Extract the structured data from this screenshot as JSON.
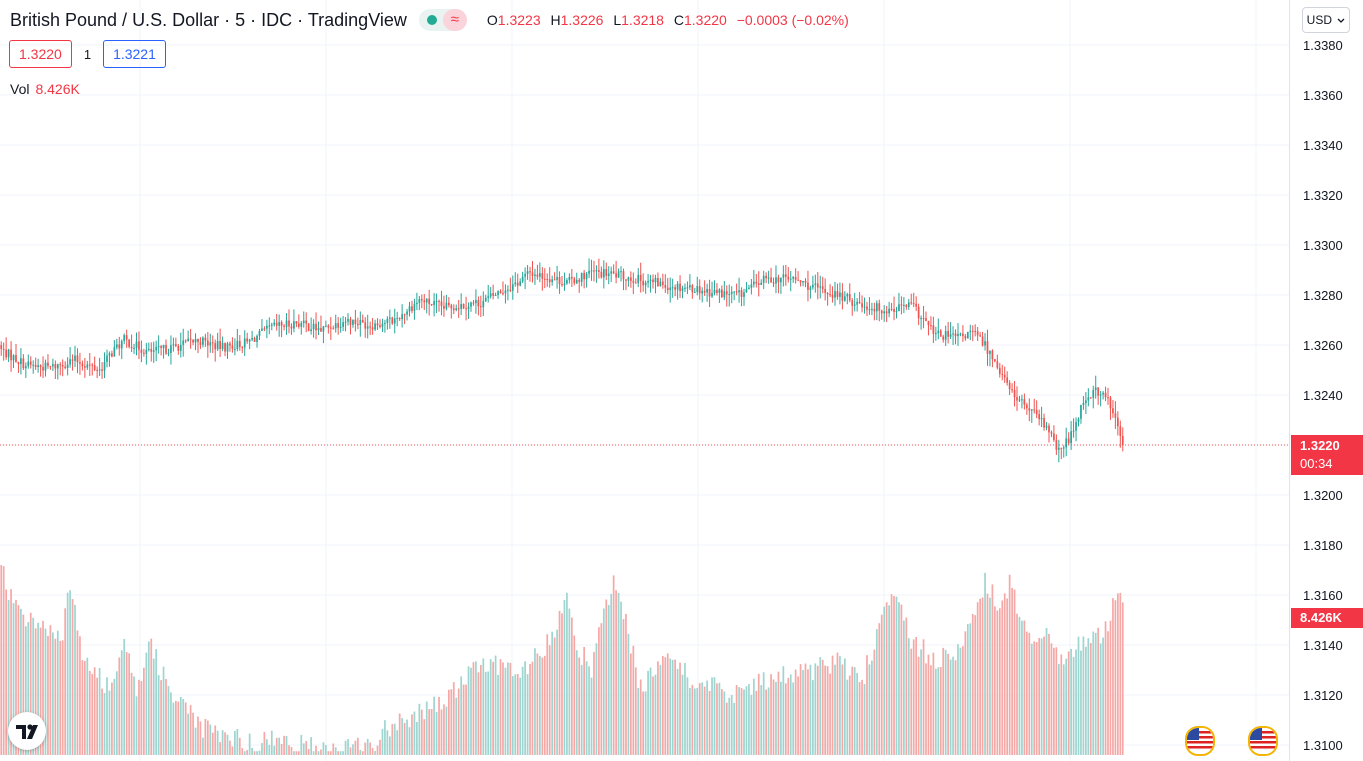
{
  "header": {
    "symbol": "British Pound / U.S. Dollar",
    "interval": "5",
    "exchange": "IDC",
    "source": "TradingView",
    "status_wave_icon": "≈",
    "ohlc": {
      "o_label": "O",
      "o": "1.3223",
      "h_label": "H",
      "h": "1.3226",
      "l_label": "L",
      "l": "1.3218",
      "c_label": "C",
      "c": "1.3220",
      "change": "−0.0003 (−0.02%)"
    }
  },
  "trade": {
    "bid": "1.3220",
    "spread": "1",
    "ask": "1.3221"
  },
  "volume": {
    "label": "Vol",
    "value": "8.426K"
  },
  "currency_selector": "USD",
  "price_tag": {
    "price": "1.3220",
    "countdown": "00:34"
  },
  "volume_tag": "8.426K",
  "colors": {
    "up": "#26a69a",
    "down": "#ef5350",
    "up_vol": "#9ed5d0",
    "down_vol": "#f5a9a7",
    "grid": "#f0f3fa"
  },
  "chart_data": {
    "type": "candlestick",
    "y_ticks": [
      "1.3380",
      "1.3360",
      "1.3340",
      "1.3320",
      "1.3300",
      "1.3280",
      "1.3260",
      "1.3240",
      "1.3200",
      "1.3180",
      "1.3160",
      "1.3140",
      "1.3120",
      "1.3100"
    ],
    "ylim": [
      1.3096,
      1.3384
    ],
    "last_price": 1.322,
    "volume_scale_max": 1.0,
    "close_anchors": [
      [
        0,
        1.3258
      ],
      [
        10,
        1.3252
      ],
      [
        20,
        1.3251
      ],
      [
        30,
        1.3254
      ],
      [
        40,
        1.325
      ],
      [
        45,
        1.3257
      ],
      [
        50,
        1.3262
      ],
      [
        60,
        1.3257
      ],
      [
        70,
        1.3259
      ],
      [
        80,
        1.3262
      ],
      [
        90,
        1.3259
      ],
      [
        100,
        1.3261
      ],
      [
        110,
        1.3267
      ],
      [
        120,
        1.3269
      ],
      [
        130,
        1.3266
      ],
      [
        140,
        1.327
      ],
      [
        150,
        1.3268
      ],
      [
        160,
        1.327
      ],
      [
        170,
        1.3278
      ],
      [
        180,
        1.3275
      ],
      [
        195,
        1.3277
      ],
      [
        210,
        1.3285
      ],
      [
        215,
        1.3289
      ],
      [
        230,
        1.3285
      ],
      [
        240,
        1.3289
      ],
      [
        250,
        1.3288
      ],
      [
        260,
        1.3286
      ],
      [
        270,
        1.3284
      ],
      [
        280,
        1.3283
      ],
      [
        290,
        1.3281
      ],
      [
        300,
        1.328
      ],
      [
        310,
        1.3286
      ],
      [
        320,
        1.3287
      ],
      [
        330,
        1.3283
      ],
      [
        340,
        1.328
      ],
      [
        350,
        1.3276
      ],
      [
        360,
        1.3274
      ],
      [
        370,
        1.3276
      ],
      [
        380,
        1.3264
      ],
      [
        390,
        1.3263
      ],
      [
        395,
        1.3265
      ],
      [
        400,
        1.326
      ],
      [
        405,
        1.3252
      ],
      [
        410,
        1.3242
      ],
      [
        420,
        1.3232
      ],
      [
        425,
        1.3227
      ],
      [
        430,
        1.3217
      ],
      [
        435,
        1.3224
      ],
      [
        440,
        1.3238
      ],
      [
        445,
        1.3242
      ],
      [
        450,
        1.3238
      ],
      [
        453,
        1.323
      ],
      [
        456,
        1.322
      ]
    ],
    "volume_anchors": [
      [
        0,
        0.98
      ],
      [
        5,
        0.8
      ],
      [
        10,
        0.7
      ],
      [
        15,
        0.72
      ],
      [
        20,
        0.65
      ],
      [
        25,
        0.62
      ],
      [
        28,
        0.9
      ],
      [
        32,
        0.58
      ],
      [
        38,
        0.42
      ],
      [
        45,
        0.35
      ],
      [
        50,
        0.66
      ],
      [
        55,
        0.35
      ],
      [
        60,
        0.58
      ],
      [
        65,
        0.45
      ],
      [
        70,
        0.32
      ],
      [
        75,
        0.28
      ],
      [
        80,
        0.15
      ],
      [
        85,
        0.12
      ],
      [
        90,
        0.1
      ],
      [
        100,
        0.07
      ],
      [
        115,
        0.07
      ],
      [
        120,
        0.05
      ],
      [
        130,
        0.04
      ],
      [
        140,
        0.03
      ],
      [
        150,
        0.05
      ],
      [
        160,
        0.18
      ],
      [
        170,
        0.22
      ],
      [
        180,
        0.28
      ],
      [
        190,
        0.42
      ],
      [
        200,
        0.5
      ],
      [
        210,
        0.4
      ],
      [
        225,
        0.62
      ],
      [
        230,
        0.85
      ],
      [
        235,
        0.55
      ],
      [
        240,
        0.45
      ],
      [
        245,
        0.75
      ],
      [
        250,
        0.92
      ],
      [
        260,
        0.35
      ],
      [
        270,
        0.55
      ],
      [
        280,
        0.4
      ],
      [
        290,
        0.35
      ],
      [
        300,
        0.32
      ],
      [
        310,
        0.38
      ],
      [
        320,
        0.42
      ],
      [
        330,
        0.45
      ],
      [
        340,
        0.5
      ],
      [
        350,
        0.38
      ],
      [
        355,
        0.6
      ],
      [
        360,
        0.8
      ],
      [
        365,
        0.78
      ],
      [
        370,
        0.6
      ],
      [
        380,
        0.5
      ],
      [
        390,
        0.55
      ],
      [
        395,
        0.7
      ],
      [
        400,
        0.92
      ],
      [
        405,
        0.8
      ],
      [
        410,
        0.9
      ],
      [
        415,
        0.72
      ],
      [
        420,
        0.6
      ],
      [
        425,
        0.62
      ],
      [
        430,
        0.5
      ],
      [
        435,
        0.56
      ],
      [
        440,
        0.62
      ],
      [
        445,
        0.6
      ],
      [
        450,
        0.68
      ],
      [
        453,
        0.82
      ],
      [
        456,
        0.82
      ]
    ]
  }
}
